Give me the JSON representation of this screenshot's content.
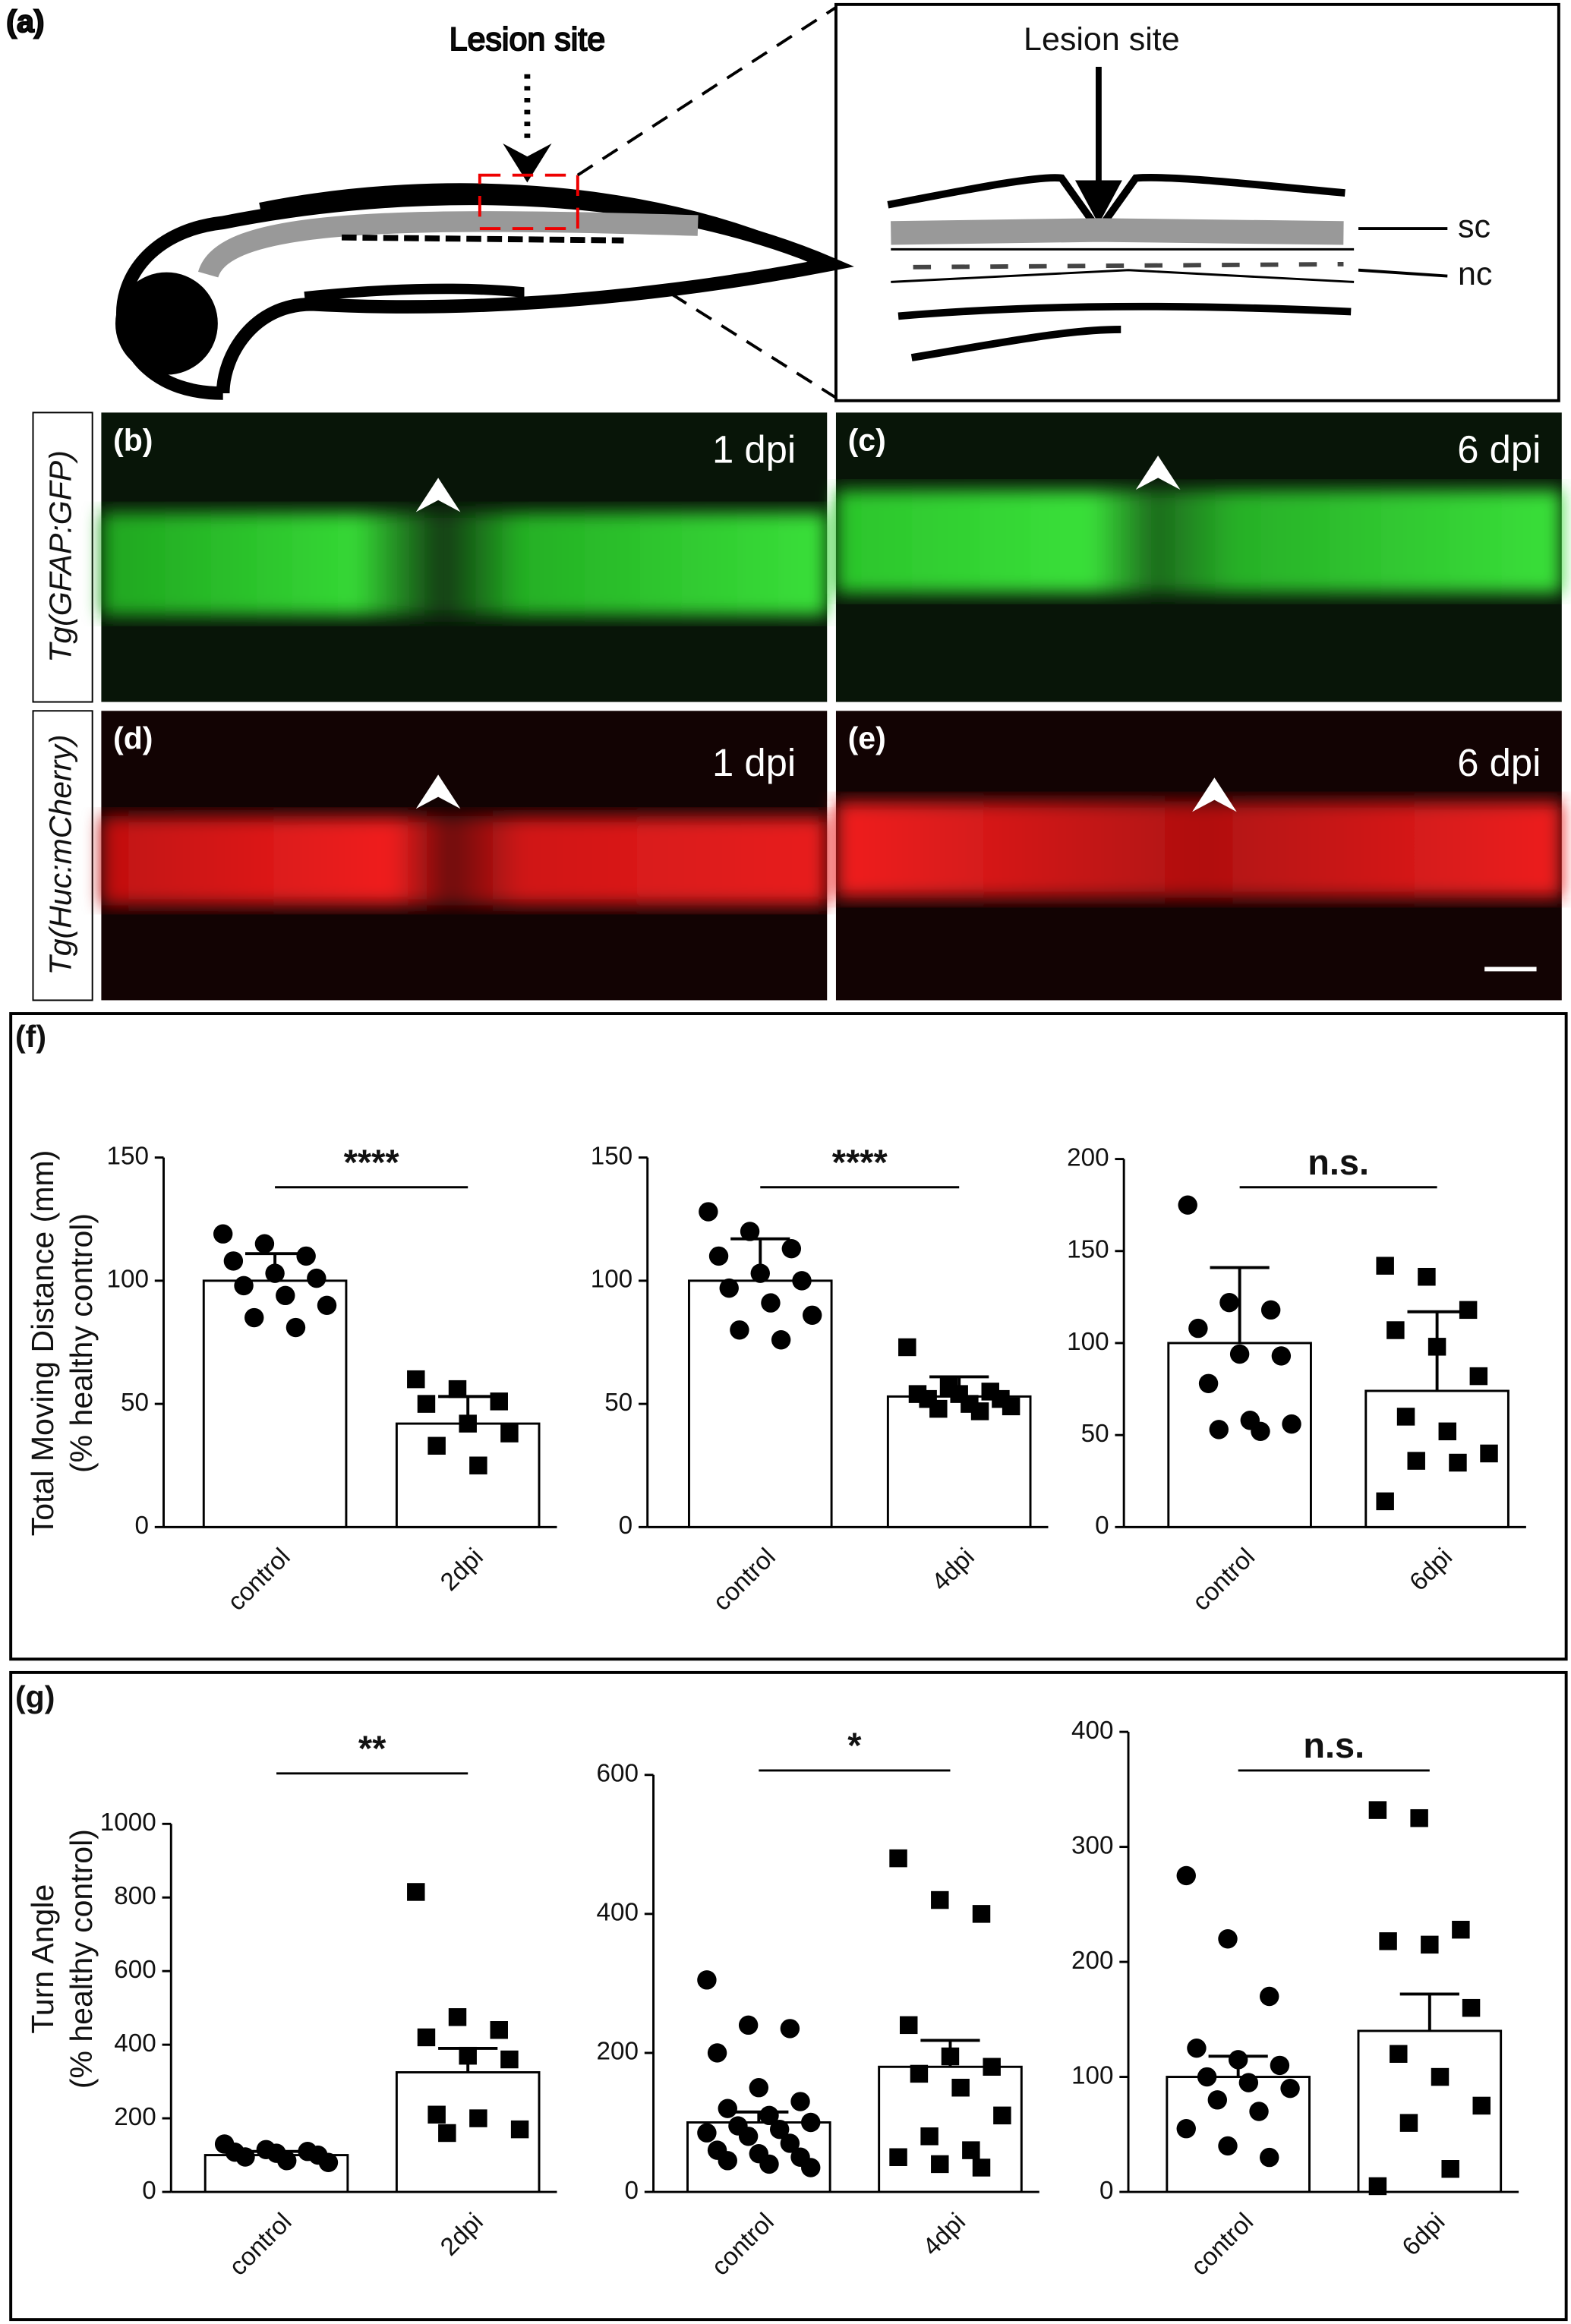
{
  "panel_a": {
    "label": "(a)",
    "lesion_label": "Lesion site",
    "inset_lesion_label": "Lesion site",
    "sc": "sc",
    "nc": "nc"
  },
  "microscopy": {
    "row_labels": [
      "Tg(GFAP:GFP)",
      "Tg(Huc:mCherry)"
    ],
    "panels": [
      {
        "label": "(b)",
        "time": "1 dpi"
      },
      {
        "label": "(c)",
        "time": "6 dpi"
      },
      {
        "label": "(d)",
        "time": "1 dpi"
      },
      {
        "label": "(e)",
        "time": "6 dpi"
      }
    ]
  },
  "panel_labels": {
    "f": "(f)",
    "g": "(g)"
  },
  "row_ylabels": {
    "f": [
      "Total Moving Distance (mm)",
      "(% healthy control)"
    ],
    "g": [
      "Turn Angle",
      "(% healthy control)"
    ]
  },
  "chart_data": [
    {
      "type": "bar",
      "categories": [
        "control",
        "2dpi"
      ],
      "values": [
        100,
        42
      ],
      "errors": [
        11,
        11
      ],
      "markers": [
        "circle",
        "square"
      ],
      "points": [
        [
          119,
          115,
          110,
          108,
          103,
          101,
          98,
          94,
          90,
          85,
          81
        ],
        [
          60,
          56,
          51,
          50,
          42,
          38,
          33,
          25
        ]
      ],
      "significance": "****",
      "ylim": [
        0,
        150
      ],
      "yticks": [
        0,
        50,
        100,
        150
      ]
    },
    {
      "type": "bar",
      "categories": [
        "control",
        "4dpi"
      ],
      "values": [
        100,
        53
      ],
      "errors": [
        17,
        8
      ],
      "markers": [
        "circle",
        "square"
      ],
      "points": [
        [
          128,
          120,
          113,
          110,
          103,
          100,
          97,
          91,
          86,
          80,
          76
        ],
        [
          73,
          57,
          55,
          54,
          54,
          52,
          52,
          50,
          49,
          48,
          47
        ]
      ],
      "significance": "****",
      "ylim": [
        0,
        150
      ],
      "yticks": [
        0,
        50,
        100,
        150
      ]
    },
    {
      "type": "bar",
      "categories": [
        "control",
        "6dpi"
      ],
      "values": [
        100,
        74
      ],
      "errors": [
        41,
        43
      ],
      "markers": [
        "circle",
        "square"
      ],
      "points": [
        [
          175,
          122,
          118,
          108,
          94,
          93,
          78,
          58,
          56,
          53,
          52
        ],
        [
          142,
          136,
          118,
          107,
          98,
          82,
          60,
          52,
          40,
          36,
          35,
          14
        ]
      ],
      "significance": "n.s.",
      "ylim": [
        0,
        200
      ],
      "yticks": [
        0,
        50,
        100,
        150,
        200
      ]
    },
    {
      "type": "bar",
      "categories": [
        "control",
        "2dpi"
      ],
      "values": [
        100,
        325
      ],
      "errors": [
        10,
        65
      ],
      "markers": [
        "circle",
        "square"
      ],
      "points": [
        [
          130,
          115,
          110,
          108,
          105,
          100,
          95,
          85,
          80
        ],
        [
          815,
          475,
          440,
          420,
          370,
          360,
          210,
          200,
          170,
          160
        ]
      ],
      "significance": "**",
      "ylim": [
        0,
        1000
      ],
      "yticks": [
        0,
        200,
        400,
        600,
        800,
        1000
      ]
    },
    {
      "type": "bar",
      "categories": [
        "control",
        "4dpi"
      ],
      "values": [
        100,
        180
      ],
      "errors": [
        15,
        38
      ],
      "markers": [
        "circle",
        "square"
      ],
      "points": [
        [
          305,
          240,
          235,
          200,
          150,
          130,
          120,
          110,
          100,
          95,
          90,
          85,
          80,
          70,
          60,
          55,
          50,
          45,
          40,
          35
        ],
        [
          480,
          420,
          400,
          240,
          195,
          180,
          170,
          150,
          110,
          80,
          60,
          50,
          40,
          35
        ]
      ],
      "significance": "*",
      "ylim": [
        0,
        600
      ],
      "yticks": [
        0,
        200,
        400,
        600
      ]
    },
    {
      "type": "bar",
      "categories": [
        "control",
        "6dpi"
      ],
      "values": [
        100,
        140
      ],
      "errors": [
        18,
        32
      ],
      "markers": [
        "circle",
        "square"
      ],
      "points": [
        [
          275,
          220,
          170,
          125,
          115,
          110,
          100,
          95,
          90,
          80,
          70,
          55,
          40,
          30
        ],
        [
          332,
          325,
          228,
          218,
          215,
          160,
          120,
          100,
          75,
          60,
          20,
          5
        ]
      ],
      "significance": "n.s.",
      "ylim": [
        0,
        400
      ],
      "yticks": [
        0,
        100,
        200,
        300,
        400
      ]
    }
  ]
}
